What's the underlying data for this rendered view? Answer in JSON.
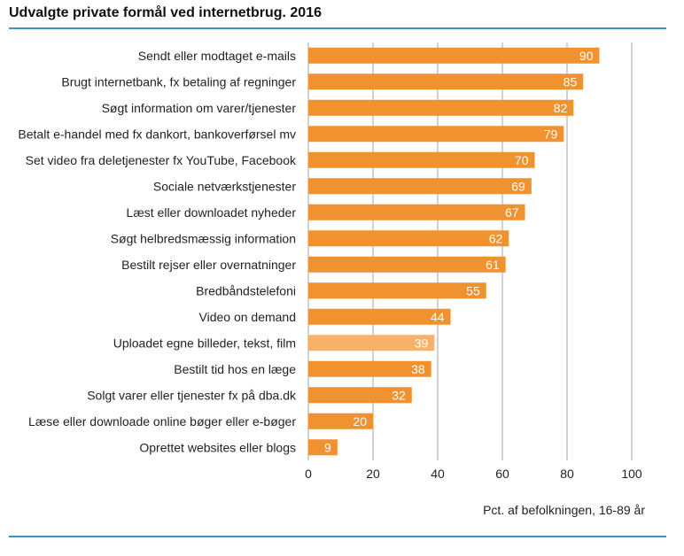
{
  "title": "Udvalgte private formål ved internetbrug. 2016",
  "chart_data": {
    "type": "bar",
    "orientation": "horizontal",
    "title": "Udvalgte private formål ved internetbrug. 2016",
    "xlabel": "Pct. af befolkningen, 16-89 år",
    "ylabel": "",
    "xlim": [
      0,
      100
    ],
    "xticks": [
      0,
      20,
      40,
      60,
      80,
      100
    ],
    "grid": "vertical",
    "colors": {
      "bar": "#f0922f",
      "highlight": "#f6b26b",
      "grid": "#a6a6a6",
      "rule": "#3a93c9"
    },
    "highlight_index": 11,
    "categories": [
      "Sendt eller modtaget e-mails",
      "Brugt internetbank, fx betaling af regninger",
      "Søgt information om varer/tjenester",
      "Betalt  e-handel med fx dankort,  bankoverførsel mv",
      "Set video fra deletjenester fx YouTube, Facebook",
      "Sociale netværkstjenester",
      "Læst eller downloadet nyheder",
      "Søgt helbredsmæssig information",
      "Bestilt rejser eller overnatninger",
      "Bredbåndstelefoni",
      "Video on demand",
      "Uploadet egne billeder, tekst, film",
      "Bestilt tid hos en læge",
      "Solgt varer eller tjenester fx på dba.dk",
      "Læse eller downloade online bøger eller e-bøger",
      "Oprettet websites eller blogs"
    ],
    "values": [
      90,
      85,
      82,
      79,
      70,
      69,
      67,
      62,
      61,
      55,
      44,
      39,
      38,
      32,
      20,
      9
    ]
  }
}
